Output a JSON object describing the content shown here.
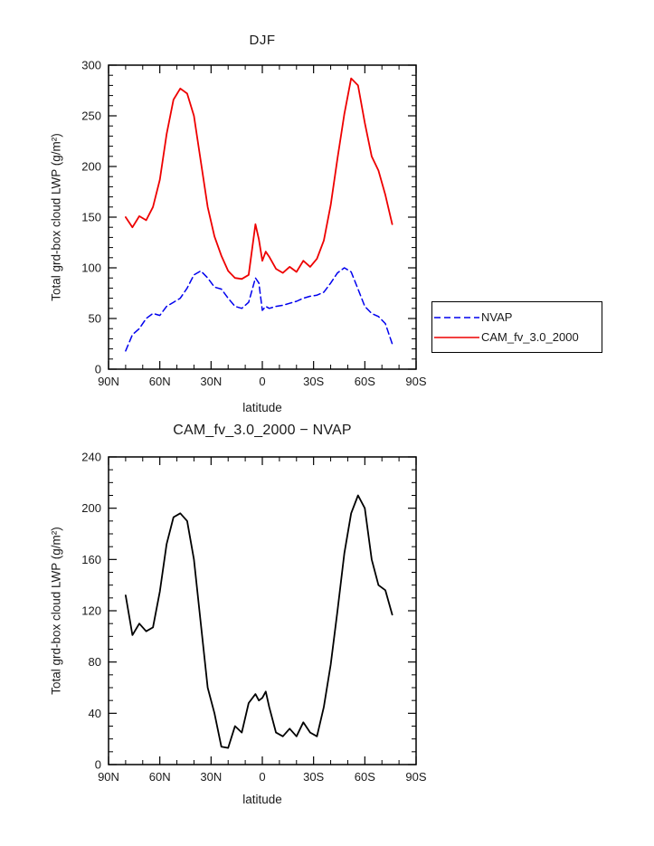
{
  "page": {
    "background": "#ffffff",
    "text_color": "#1a1a1a",
    "axis_color": "#000000"
  },
  "legend": {
    "entries": [
      {
        "label": "NVAP",
        "color": "#0000ee",
        "style": "dashed"
      },
      {
        "label": "CAM_fv_3.0_2000",
        "color": "#ee0000",
        "style": "solid"
      }
    ],
    "position": "right-outside"
  },
  "chart_data": [
    {
      "id": "djf-lwp",
      "type": "line",
      "title": "DJF",
      "xlabel": "latitude",
      "ylabel": "Total grd-box cloud LWP (g/m²)",
      "xlim": [
        90,
        -90
      ],
      "ylim": [
        0,
        300
      ],
      "xticks": [
        90,
        60,
        30,
        0,
        -30,
        -60,
        -90
      ],
      "xtick_labels": [
        "90N",
        "60N",
        "30N",
        "0",
        "30S",
        "60S",
        "90S"
      ],
      "yticks": [
        0,
        50,
        100,
        150,
        200,
        250,
        300
      ],
      "x_minor_step": 10,
      "y_minor_step": 10,
      "grid": false,
      "legend_position": "right-outside",
      "x": [
        80,
        76,
        72,
        68,
        64,
        60,
        56,
        52,
        48,
        44,
        40,
        36,
        32,
        28,
        24,
        20,
        16,
        12,
        8,
        4,
        2,
        0,
        -2,
        -4,
        -8,
        -12,
        -16,
        -20,
        -24,
        -28,
        -32,
        -36,
        -40,
        -44,
        -48,
        -52,
        -56,
        -60,
        -64,
        -68,
        -72,
        -76
      ],
      "series": [
        {
          "name": "NVAP",
          "color": "#0000ee",
          "dash": "7,4",
          "width": 1.5,
          "values": [
            18,
            34,
            40,
            50,
            55,
            53,
            62,
            66,
            70,
            80,
            93,
            97,
            90,
            81,
            79,
            70,
            62,
            60,
            66,
            90,
            85,
            58,
            62,
            60,
            62,
            63,
            65,
            67,
            70,
            72,
            73,
            76,
            85,
            95,
            100,
            96,
            79,
            62,
            55,
            52,
            45,
            25
          ]
        },
        {
          "name": "CAM_fv_3.0_2000",
          "color": "#ee0000",
          "dash": null,
          "width": 1.8,
          "values": [
            150,
            140,
            151,
            147,
            160,
            187,
            232,
            266,
            277,
            272,
            250,
            205,
            160,
            131,
            112,
            97,
            90,
            89,
            93,
            143,
            128,
            107,
            116,
            111,
            99,
            95,
            101,
            96,
            107,
            101,
            109,
            127,
            162,
            208,
            252,
            287,
            280,
            243,
            210,
            196,
            172,
            143
          ]
        }
      ]
    },
    {
      "id": "diff-lwp",
      "type": "line",
      "title": "CAM_fv_3.0_2000 − NVAP",
      "xlabel": "latitude",
      "ylabel": "Total grd-box cloud LWP (g/m²)",
      "xlim": [
        90,
        -90
      ],
      "ylim": [
        0,
        240
      ],
      "xticks": [
        90,
        60,
        30,
        0,
        -30,
        -60,
        -90
      ],
      "xtick_labels": [
        "90N",
        "60N",
        "30N",
        "0",
        "30S",
        "60S",
        "90S"
      ],
      "yticks": [
        0,
        40,
        80,
        120,
        160,
        200,
        240
      ],
      "x_minor_step": 10,
      "y_minor_step": 10,
      "grid": false,
      "legend_position": "none",
      "x": [
        80,
        76,
        72,
        68,
        64,
        60,
        56,
        52,
        48,
        44,
        40,
        36,
        32,
        28,
        24,
        20,
        16,
        12,
        8,
        4,
        2,
        0,
        -2,
        -4,
        -8,
        -12,
        -16,
        -20,
        -24,
        -28,
        -32,
        -36,
        -40,
        -44,
        -48,
        -52,
        -56,
        -60,
        -64,
        -68,
        -72,
        -76
      ],
      "series": [
        {
          "name": "CAM_fv_3.0_2000 − NVAP",
          "color": "#000000",
          "dash": null,
          "width": 1.8,
          "values": [
            132,
            101,
            110,
            104,
            107,
            135,
            172,
            193,
            196,
            190,
            160,
            110,
            60,
            40,
            14,
            13,
            30,
            25,
            48,
            55,
            50,
            52,
            57,
            45,
            25,
            22,
            28,
            22,
            33,
            25,
            22,
            45,
            78,
            120,
            165,
            196,
            210,
            200,
            160,
            140,
            136,
            117
          ]
        }
      ]
    }
  ]
}
